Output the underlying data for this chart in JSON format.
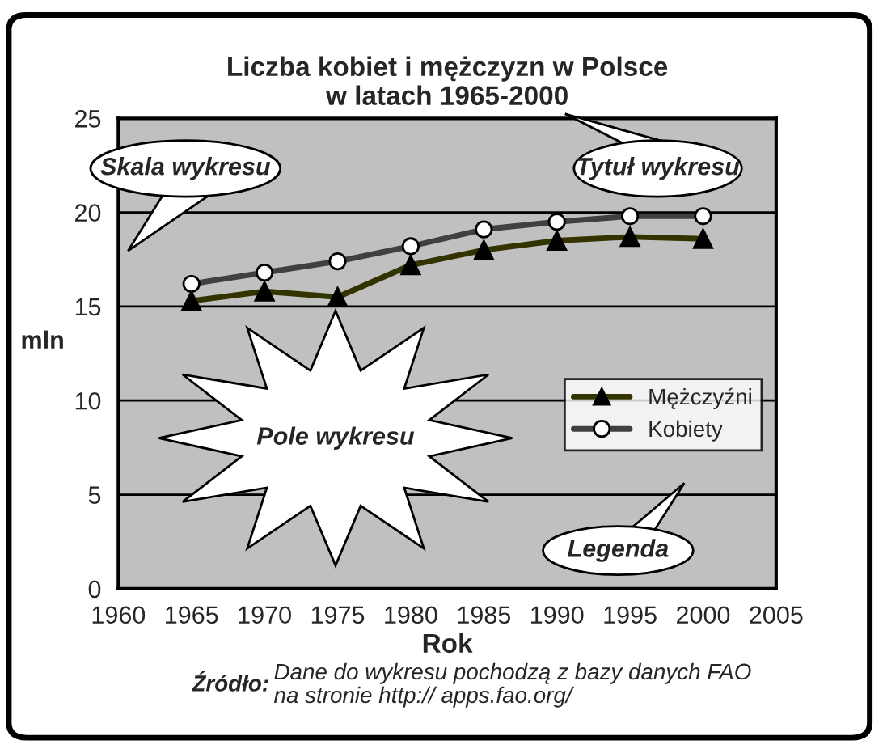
{
  "chart_data": {
    "type": "line",
    "title": "Liczba kobiet i mężczyzn w Polsce\nw latach 1965-2000",
    "xlabel": "Rok",
    "ylabel": "mln",
    "x": [
      1965,
      1970,
      1975,
      1980,
      1985,
      1990,
      1995,
      2000
    ],
    "series": [
      {
        "name": "Mężczyźni",
        "color": "#333300",
        "marker": "triangle",
        "values": [
          15.3,
          15.8,
          15.5,
          17.2,
          18.0,
          18.5,
          18.7,
          18.6
        ]
      },
      {
        "name": "Kobiety",
        "color": "#404040",
        "marker": "circle",
        "values": [
          16.2,
          16.8,
          17.4,
          18.2,
          19.1,
          19.5,
          19.8,
          19.8
        ]
      }
    ],
    "xlim": [
      1960,
      2005
    ],
    "xticks": [
      1960,
      1965,
      1970,
      1975,
      1980,
      1985,
      1990,
      1995,
      2000,
      2005
    ],
    "ylim": [
      0,
      25
    ],
    "yticks": [
      0,
      5,
      10,
      15,
      20,
      25
    ],
    "grid": "y",
    "legend": "right",
    "annotations": [
      "Skala wykresu",
      "Tytuł wykresu",
      "Pole wykresu",
      "Legenda",
      "Źródło:",
      "Dane do wykresu pochodzą z bazy danych FAO\nna stronie http:// apps.fao.org/"
    ]
  }
}
